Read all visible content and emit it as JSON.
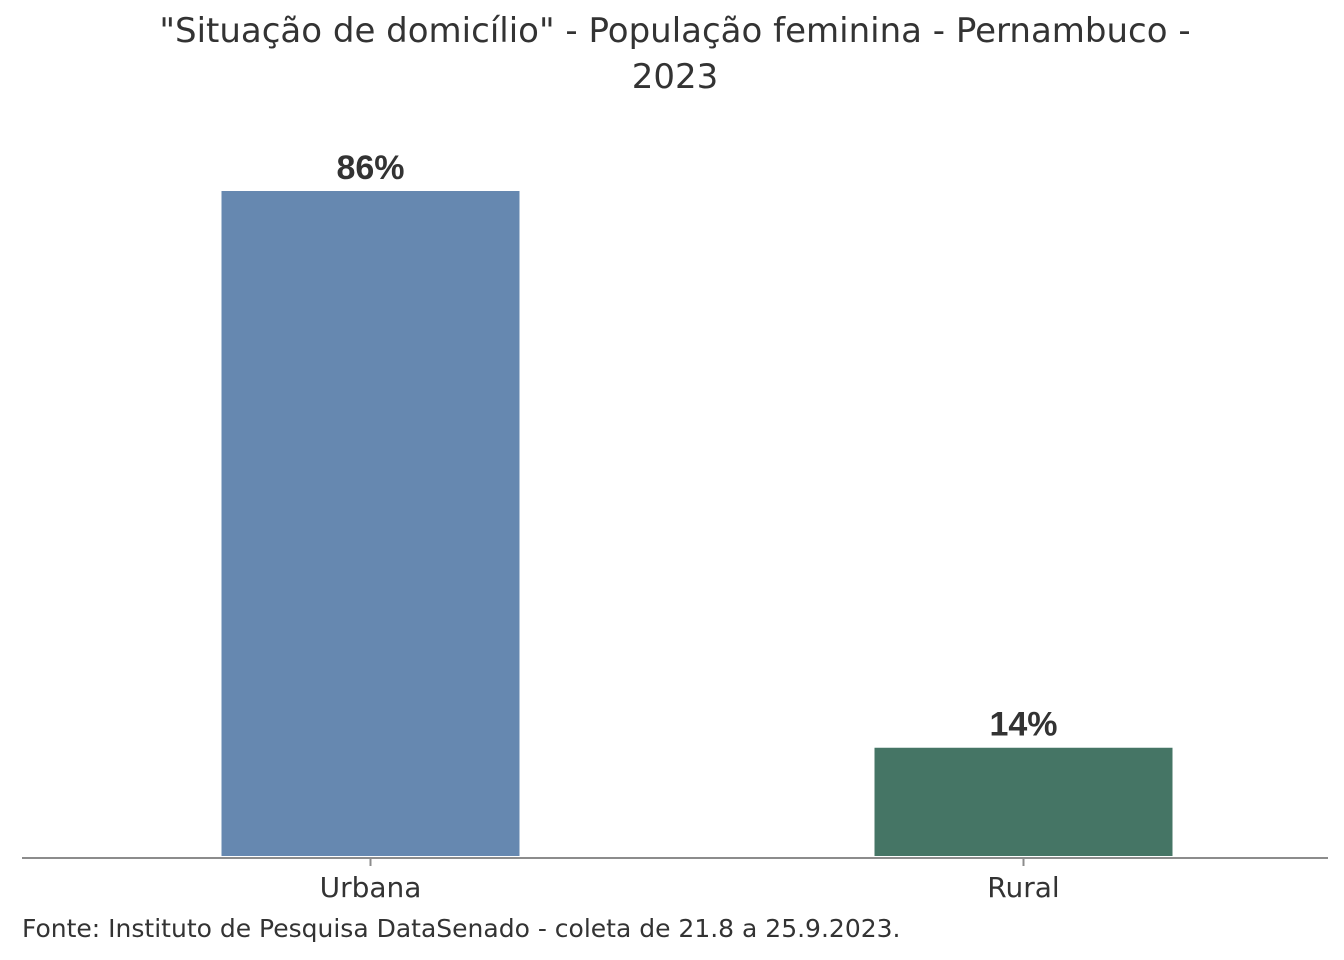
{
  "chart_data": {
    "type": "bar",
    "title_lines": [
      "\"Situação de domicílio\" - População feminina - Pernambuco -",
      "2023"
    ],
    "categories": [
      "Urbana",
      "Rural"
    ],
    "values": [
      86,
      14
    ],
    "value_labels": [
      "86%",
      "14%"
    ],
    "colors": [
      "#6688b0",
      "#457565"
    ],
    "ylim": [
      0,
      86
    ],
    "grid": false,
    "legend": "none"
  },
  "source": "Fonte: Instituto de Pesquisa DataSenado - coleta de 21.8 a 25.9.2023."
}
